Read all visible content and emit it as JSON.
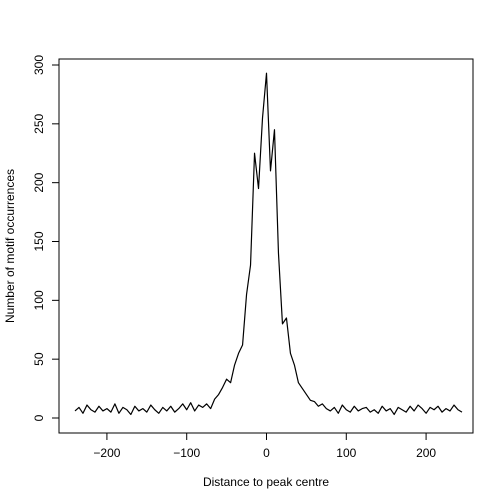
{
  "chart_data": {
    "type": "line",
    "title": "",
    "xlabel": "Distance to peak centre",
    "ylabel": "Number of motif occurrences",
    "xlim": [
      -250,
      250
    ],
    "ylim": [
      0,
      300
    ],
    "x_ticks": [
      -200,
      -100,
      0,
      100,
      200
    ],
    "x_tick_labels": [
      "−200",
      "−100",
      "0",
      "100",
      "200"
    ],
    "y_ticks": [
      0,
      50,
      100,
      150,
      200,
      250,
      300
    ],
    "y_tick_labels": [
      "0",
      "50",
      "100",
      "150",
      "200",
      "250",
      "300"
    ],
    "grid": false,
    "legend": "none",
    "line_color": "#000000",
    "series": [
      {
        "x": [
          -240,
          -235,
          -230,
          -225,
          -220,
          -215,
          -210,
          -205,
          -200,
          -195,
          -190,
          -185,
          -180,
          -175,
          -170,
          -165,
          -160,
          -155,
          -150,
          -145,
          -140,
          -135,
          -130,
          -125,
          -120,
          -115,
          -110,
          -105,
          -100,
          -95,
          -90,
          -85,
          -80,
          -75,
          -70,
          -65,
          -60,
          -55,
          -50,
          -45,
          -40,
          -35,
          -30,
          -25,
          -20,
          -15,
          -10,
          -5,
          0,
          5,
          10,
          15,
          20,
          25,
          30,
          35,
          40,
          45,
          50,
          55,
          60,
          65,
          70,
          75,
          80,
          85,
          90,
          95,
          100,
          105,
          110,
          115,
          120,
          125,
          130,
          135,
          140,
          145,
          150,
          155,
          160,
          165,
          170,
          175,
          180,
          185,
          190,
          195,
          200,
          205,
          210,
          215,
          220,
          225,
          230,
          235,
          240,
          245
        ],
        "values": [
          6,
          9,
          4,
          11,
          7,
          5,
          10,
          6,
          8,
          5,
          12,
          4,
          9,
          7,
          3,
          10,
          6,
          8,
          5,
          11,
          7,
          4,
          9,
          6,
          10,
          5,
          8,
          12,
          7,
          13,
          6,
          11,
          9,
          12,
          8,
          16,
          20,
          26,
          33,
          30,
          45,
          55,
          62,
          105,
          130,
          225,
          195,
          255,
          293,
          210,
          245,
          140,
          80,
          85,
          55,
          45,
          30,
          25,
          20,
          15,
          14,
          10,
          12,
          8,
          6,
          9,
          4,
          11,
          7,
          5,
          10,
          6,
          8,
          9,
          5,
          7,
          4,
          10,
          6,
          8,
          3,
          9,
          7,
          5,
          10,
          6,
          11,
          8,
          4,
          9,
          7,
          10,
          5,
          8,
          6,
          11,
          7,
          5
        ]
      }
    ]
  }
}
